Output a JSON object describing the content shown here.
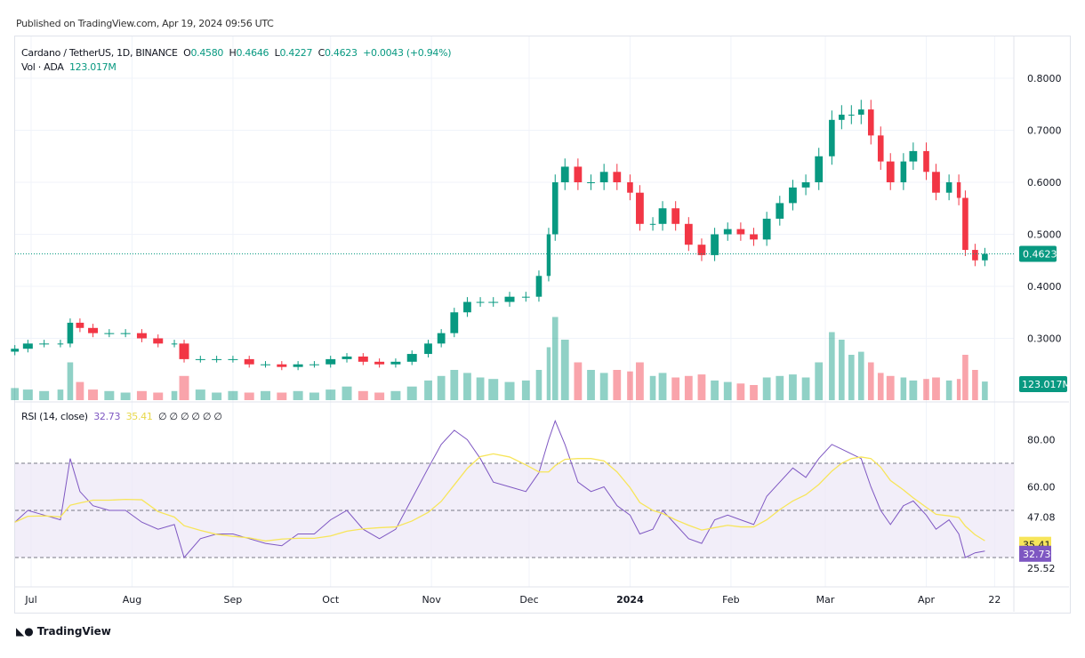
{
  "published": "Published on TradingView.com, Apr 19, 2024 09:56 UTC",
  "legend": {
    "symbol": "Cardano / TetherUS, 1D, BINANCE",
    "o_label": "O",
    "o": "0.4580",
    "h_label": "H",
    "h": "0.4646",
    "l_label": "L",
    "l": "0.4227",
    "c_label": "C",
    "c": "0.4623",
    "change": "+0.0043 (+0.94%)",
    "vol_label": "Vol · ADA",
    "vol": "123.017M"
  },
  "rsi_legend": {
    "label": "RSI (14, close)",
    "rsi": "32.73",
    "ma": "35.41",
    "extras": "∅ ∅ ∅ ∅ ∅ ∅"
  },
  "brand": "TradingView",
  "colors": {
    "up": "#089981",
    "down": "#f23645",
    "rsi": "#7e57c2",
    "rsi_ma": "#f7e55a",
    "band": "#ede7f6"
  },
  "chart_data": {
    "type": "candlestick",
    "price_ticks": [
      "0.8000",
      "0.7000",
      "0.6000",
      "0.5000",
      "0.4000",
      "0.3000"
    ],
    "last_price": "0.4623",
    "last_volume": "123.017M",
    "rsi_ticks": [
      "80.00",
      "60.00",
      "47.08",
      "25.52"
    ],
    "rsi_last": "32.73",
    "rsi_ma_last": "35.41",
    "rsi_bands": [
      70,
      50,
      30
    ],
    "x_ticks": [
      [
        "Jul",
        "2023-07-01"
      ],
      [
        "Aug",
        "2023-08-01"
      ],
      [
        "Sep",
        "2023-09-01"
      ],
      [
        "Oct",
        "2023-10-01"
      ],
      [
        "Nov",
        "2023-11-01"
      ],
      [
        "Dec",
        "2023-12-01"
      ],
      [
        "2024",
        "2024-01-01"
      ],
      [
        "Feb",
        "2024-02-01"
      ],
      [
        "Mar",
        "2024-03-01"
      ],
      [
        "Apr",
        "2024-04-01"
      ],
      [
        "22",
        "2024-04-22"
      ]
    ],
    "x": [
      "2023-06-26",
      "2023-06-30",
      "2023-07-05",
      "2023-07-10",
      "2023-07-13",
      "2023-07-16",
      "2023-07-20",
      "2023-07-25",
      "2023-07-30",
      "2023-08-04",
      "2023-08-09",
      "2023-08-14",
      "2023-08-17",
      "2023-08-22",
      "2023-08-27",
      "2023-09-01",
      "2023-09-06",
      "2023-09-11",
      "2023-09-16",
      "2023-09-21",
      "2023-09-26",
      "2023-10-01",
      "2023-10-06",
      "2023-10-11",
      "2023-10-16",
      "2023-10-21",
      "2023-10-26",
      "2023-10-31",
      "2023-11-04",
      "2023-11-08",
      "2023-11-12",
      "2023-11-16",
      "2023-11-20",
      "2023-11-25",
      "2023-11-30",
      "2023-12-04",
      "2023-12-07",
      "2023-12-09",
      "2023-12-12",
      "2023-12-16",
      "2023-12-20",
      "2023-12-24",
      "2023-12-28",
      "2024-01-01",
      "2024-01-04",
      "2024-01-08",
      "2024-01-11",
      "2024-01-15",
      "2024-01-19",
      "2024-01-23",
      "2024-01-27",
      "2024-01-31",
      "2024-02-04",
      "2024-02-08",
      "2024-02-12",
      "2024-02-16",
      "2024-02-20",
      "2024-02-24",
      "2024-02-28",
      "2024-03-03",
      "2024-03-06",
      "2024-03-09",
      "2024-03-12",
      "2024-03-15",
      "2024-03-18",
      "2024-03-21",
      "2024-03-25",
      "2024-03-28",
      "2024-04-01",
      "2024-04-04",
      "2024-04-08",
      "2024-04-11",
      "2024-04-13",
      "2024-04-16",
      "2024-04-19"
    ],
    "close": [
      0.28,
      0.29,
      0.29,
      0.29,
      0.33,
      0.32,
      0.31,
      0.31,
      0.31,
      0.3,
      0.29,
      0.29,
      0.26,
      0.26,
      0.26,
      0.26,
      0.25,
      0.25,
      0.245,
      0.25,
      0.25,
      0.26,
      0.265,
      0.255,
      0.25,
      0.255,
      0.27,
      0.29,
      0.31,
      0.35,
      0.37,
      0.37,
      0.37,
      0.38,
      0.38,
      0.42,
      0.5,
      0.6,
      0.63,
      0.6,
      0.6,
      0.62,
      0.6,
      0.58,
      0.52,
      0.52,
      0.55,
      0.52,
      0.48,
      0.46,
      0.5,
      0.51,
      0.5,
      0.49,
      0.53,
      0.56,
      0.59,
      0.6,
      0.65,
      0.72,
      0.73,
      0.73,
      0.74,
      0.69,
      0.64,
      0.6,
      0.64,
      0.66,
      0.62,
      0.58,
      0.6,
      0.57,
      0.47,
      0.45,
      0.4623
    ],
    "volume_m": [
      80,
      70,
      60,
      70,
      250,
      120,
      70,
      60,
      50,
      60,
      50,
      60,
      160,
      70,
      50,
      60,
      50,
      60,
      50,
      60,
      50,
      70,
      90,
      60,
      50,
      60,
      90,
      130,
      160,
      200,
      180,
      150,
      140,
      120,
      130,
      200,
      350,
      550,
      400,
      250,
      200,
      180,
      200,
      190,
      250,
      160,
      180,
      150,
      160,
      170,
      130,
      120,
      110,
      100,
      150,
      160,
      170,
      150,
      250,
      450,
      400,
      300,
      320,
      250,
      180,
      160,
      150,
      130,
      140,
      150,
      130,
      140,
      300,
      200,
      123.017
    ],
    "rsi": [
      45,
      50,
      48,
      46,
      72,
      58,
      52,
      50,
      50,
      45,
      42,
      44,
      30,
      38,
      40,
      40,
      38,
      36,
      35,
      40,
      40,
      46,
      50,
      42,
      38,
      42,
      55,
      68,
      78,
      84,
      80,
      72,
      62,
      60,
      58,
      66,
      80,
      88,
      78,
      62,
      58,
      60,
      52,
      48,
      40,
      42,
      50,
      44,
      38,
      36,
      46,
      48,
      46,
      44,
      56,
      62,
      68,
      64,
      72,
      78,
      76,
      74,
      72,
      60,
      50,
      44,
      52,
      54,
      48,
      42,
      46,
      40,
      30,
      32,
      32.73
    ]
  }
}
